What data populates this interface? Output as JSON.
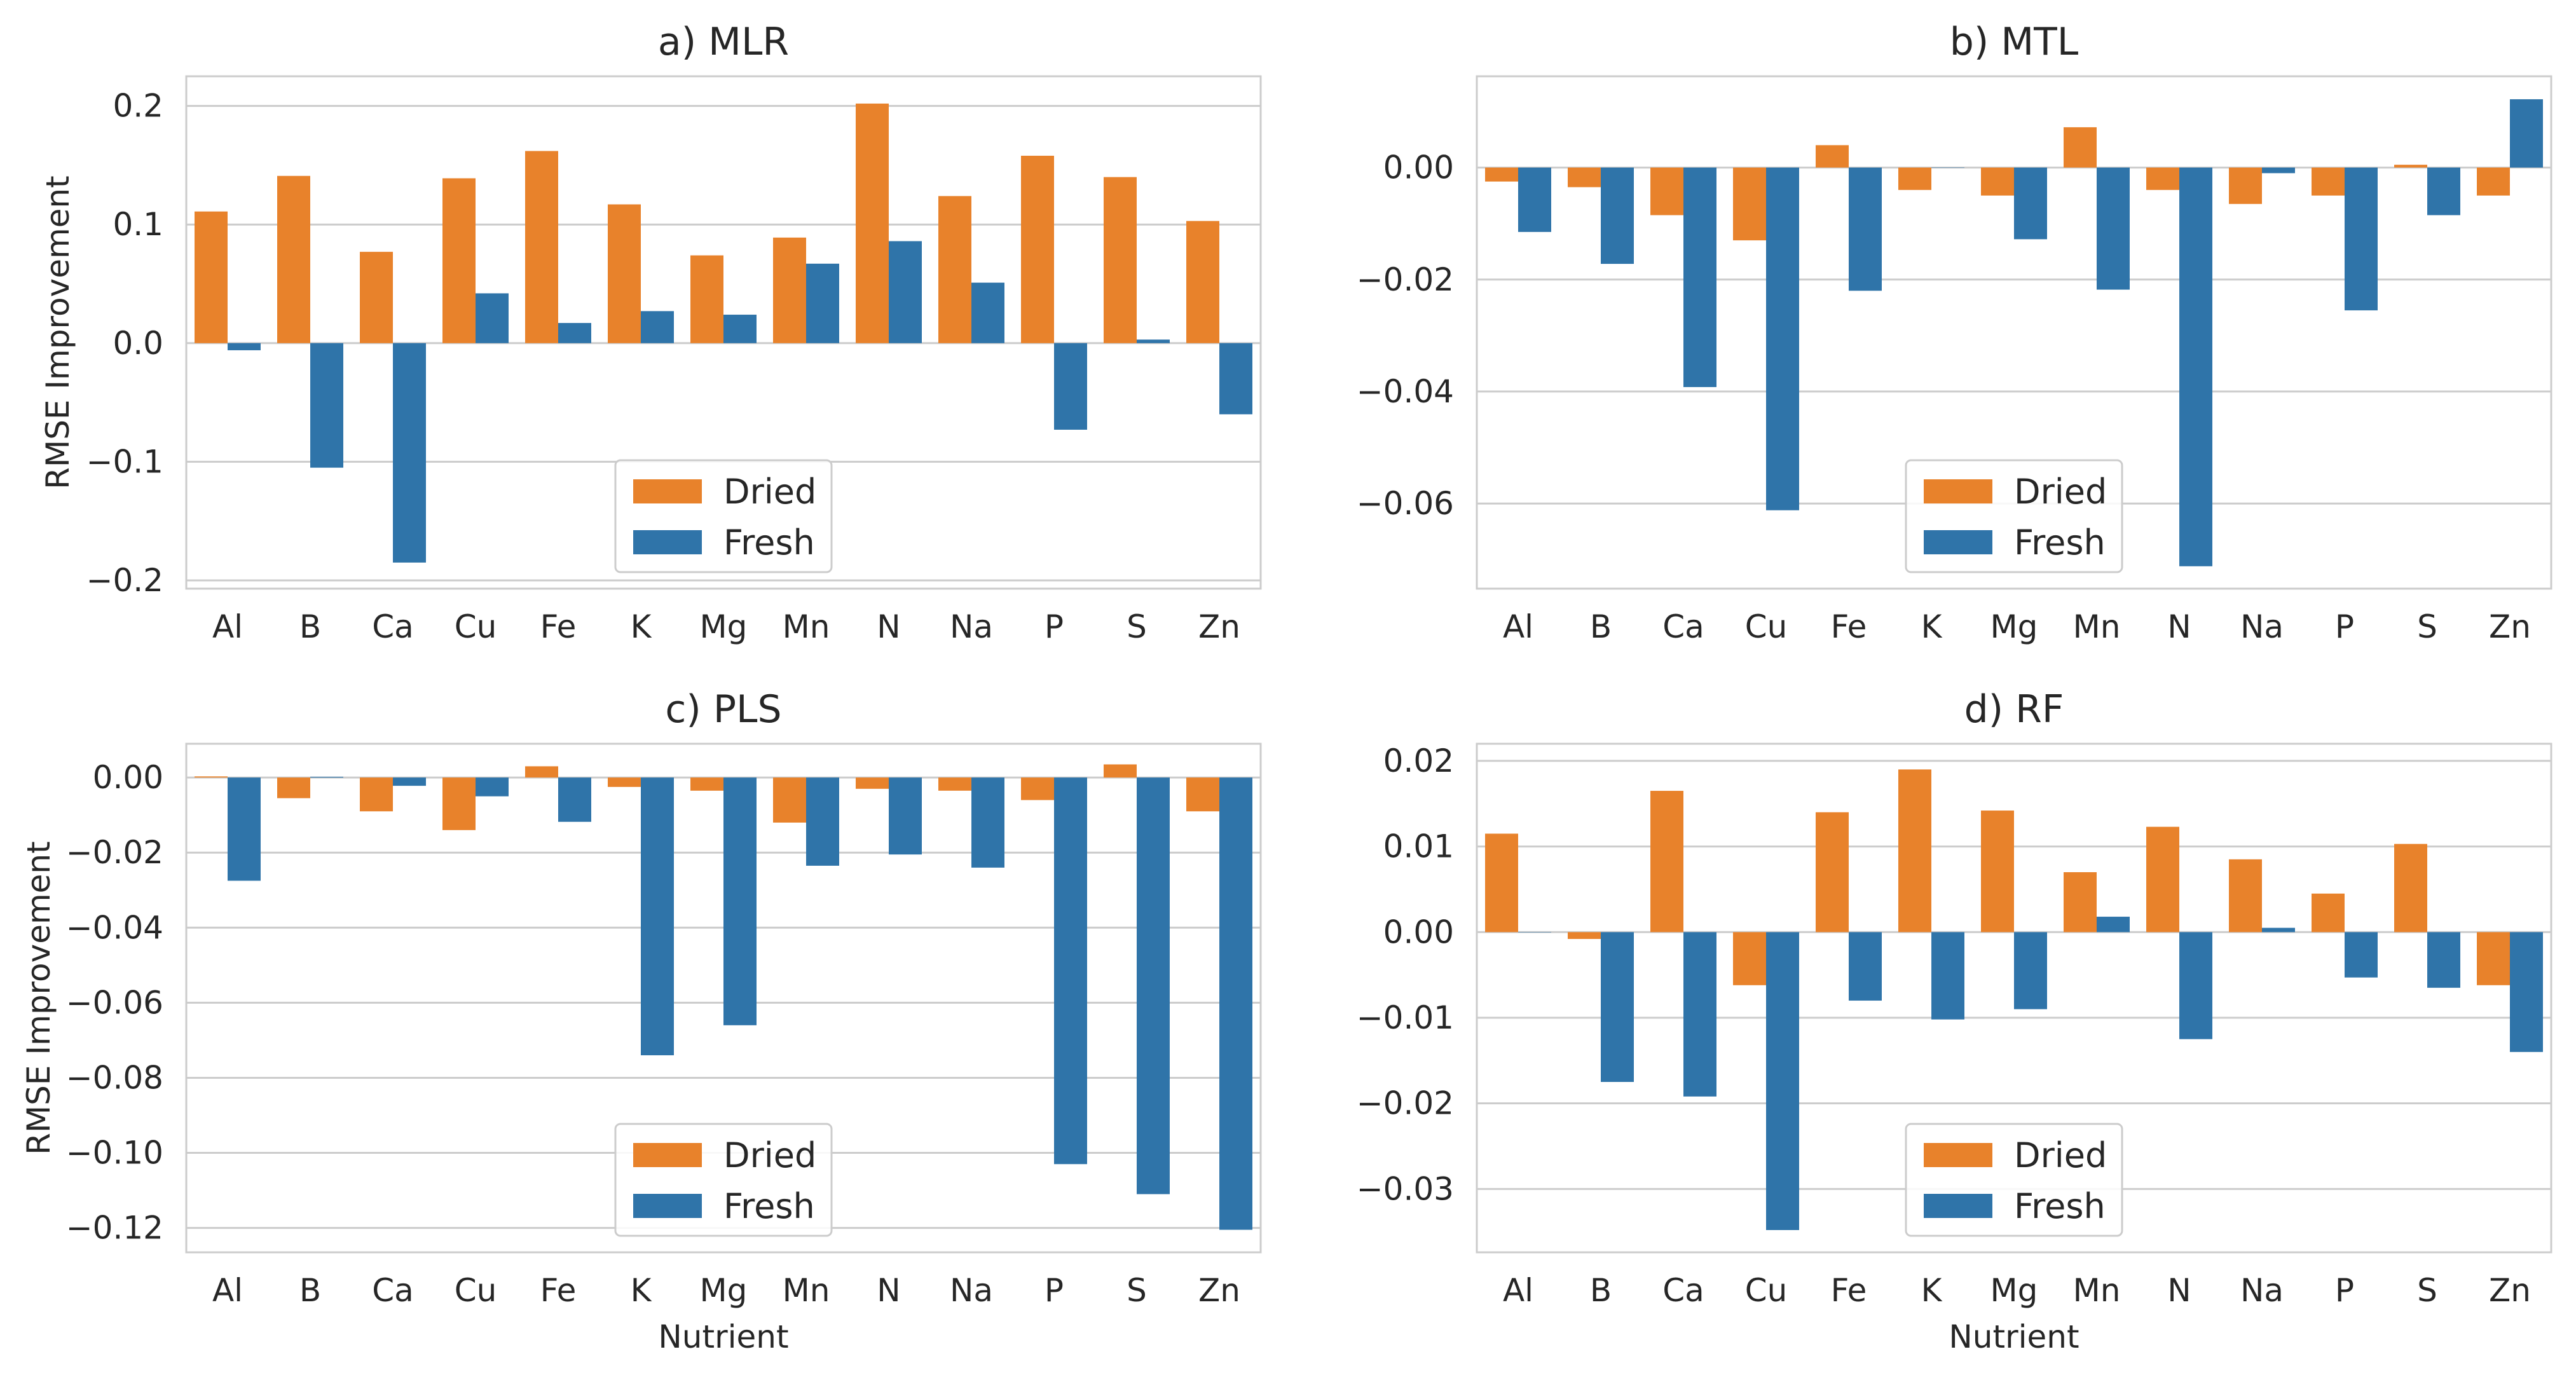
{
  "colors": {
    "dried": "#e8822b",
    "fresh": "#2f74a9",
    "grid": "#cccccc",
    "frame": "#cccccc",
    "text": "#262626"
  },
  "chart_data": [
    {
      "type": "bar",
      "title": "a) MLR",
      "xlabel": "",
      "ylabel": "RMSE Improvement",
      "categories": [
        "Al",
        "B",
        "Ca",
        "Cu",
        "Fe",
        "K",
        "Mg",
        "Mn",
        "N",
        "Na",
        "P",
        "S",
        "Zn"
      ],
      "series": [
        {
          "name": "Dried",
          "values": [
            0.111,
            0.141,
            0.077,
            0.139,
            0.162,
            0.117,
            0.074,
            0.089,
            0.202,
            0.124,
            0.158,
            0.14,
            0.103
          ]
        },
        {
          "name": "Fresh",
          "values": [
            -0.006,
            -0.105,
            -0.185,
            0.042,
            0.017,
            0.027,
            0.024,
            0.067,
            0.086,
            0.051,
            -0.073,
            0.003,
            -0.06
          ]
        }
      ],
      "ylim": [
        -0.207,
        0.225
      ],
      "yticks": [
        -0.2,
        -0.1,
        0.0,
        0.1,
        0.2
      ],
      "yticklabels": [
        "−0.2",
        "−0.1",
        "0.0",
        "0.1",
        "0.2"
      ],
      "legend": "bottom-center",
      "grid": true
    },
    {
      "type": "bar",
      "title": "b) MTL",
      "xlabel": "",
      "ylabel": "",
      "categories": [
        "Al",
        "B",
        "Ca",
        "Cu",
        "Fe",
        "K",
        "Mg",
        "Mn",
        "N",
        "Na",
        "P",
        "S",
        "Zn"
      ],
      "series": [
        {
          "name": "Dried",
          "values": [
            -0.0025,
            -0.0035,
            -0.0085,
            -0.013,
            0.004,
            -0.004,
            -0.005,
            0.0072,
            -0.004,
            -0.0065,
            -0.005,
            0.0005,
            -0.005
          ]
        },
        {
          "name": "Fresh",
          "values": [
            -0.0115,
            -0.0172,
            -0.0392,
            -0.0612,
            -0.022,
            0.0,
            -0.0128,
            -0.0218,
            -0.0712,
            -0.001,
            -0.0255,
            -0.0085,
            0.0122
          ]
        }
      ],
      "ylim": [
        -0.0752,
        0.0163
      ],
      "yticks": [
        -0.06,
        -0.04,
        -0.02,
        0.0
      ],
      "yticklabels": [
        "−0.06",
        "−0.04",
        "−0.02",
        "0.00"
      ],
      "legend": "bottom-center",
      "grid": true
    },
    {
      "type": "bar",
      "title": "c) PLS",
      "xlabel": "Nutrient",
      "ylabel": "RMSE Improvement",
      "categories": [
        "Al",
        "B",
        "Ca",
        "Cu",
        "Fe",
        "K",
        "Mg",
        "Mn",
        "N",
        "Na",
        "P",
        "S",
        "Zn"
      ],
      "series": [
        {
          "name": "Dried",
          "values": [
            0.0003,
            -0.0055,
            -0.009,
            -0.014,
            0.003,
            -0.0025,
            -0.0035,
            -0.012,
            -0.003,
            -0.0035,
            -0.006,
            0.0035,
            -0.009
          ]
        },
        {
          "name": "Fresh",
          "values": [
            -0.0275,
            0.0002,
            -0.0022,
            -0.005,
            -0.0118,
            -0.074,
            -0.066,
            -0.0235,
            -0.0205,
            -0.024,
            -0.103,
            -0.111,
            -0.1205
          ]
        }
      ],
      "ylim": [
        -0.1265,
        0.009
      ],
      "yticks": [
        -0.12,
        -0.1,
        -0.08,
        -0.06,
        -0.04,
        -0.02,
        0.0
      ],
      "yticklabels": [
        "−0.12",
        "−0.10",
        "−0.08",
        "−0.06",
        "−0.04",
        "−0.02",
        "0.00"
      ],
      "legend": "bottom-center",
      "grid": true
    },
    {
      "type": "bar",
      "title": "d) RF",
      "xlabel": "Nutrient",
      "ylabel": "",
      "categories": [
        "Al",
        "B",
        "Ca",
        "Cu",
        "Fe",
        "K",
        "Mg",
        "Mn",
        "N",
        "Na",
        "P",
        "S",
        "Zn"
      ],
      "series": [
        {
          "name": "Dried",
          "values": [
            0.0115,
            -0.0008,
            0.0165,
            -0.0062,
            0.014,
            0.019,
            0.0142,
            0.007,
            0.0123,
            0.0085,
            0.0045,
            0.0103,
            -0.0062
          ]
        },
        {
          "name": "Fresh",
          "values": [
            0.0,
            -0.0175,
            -0.0192,
            -0.0348,
            -0.008,
            -0.0102,
            -0.009,
            0.0018,
            -0.0125,
            0.0005,
            -0.0053,
            -0.0065,
            -0.014
          ]
        }
      ],
      "ylim": [
        -0.0374,
        0.022
      ],
      "yticks": [
        -0.03,
        -0.02,
        -0.01,
        0.0,
        0.01,
        0.02
      ],
      "yticklabels": [
        "−0.03",
        "−0.02",
        "−0.01",
        "0.00",
        "0.01",
        "0.02"
      ],
      "legend": "bottom-center",
      "grid": true
    }
  ]
}
